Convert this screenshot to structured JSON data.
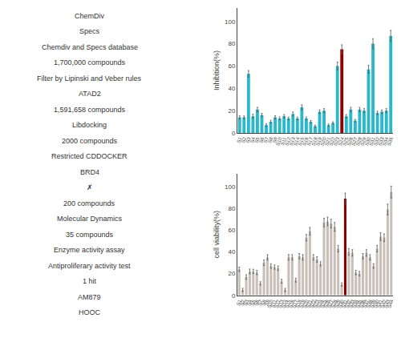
{
  "chart_data": [
    {
      "type": "bar",
      "y_label": "Inhibition(%)",
      "categories": [
        "S1",
        "S2",
        "S3",
        "S4",
        "S5",
        "S6",
        "S7",
        "S8",
        "S9",
        "S10",
        "S11",
        "S12",
        "S13",
        "S14",
        "S15",
        "S16",
        "S17",
        "S18",
        "S19",
        "S20",
        "S21",
        "S22",
        "S23",
        "S24",
        "S25",
        "S26",
        "S27",
        "S28",
        "S29",
        "S30",
        "S31",
        "S32",
        "S33",
        "S34",
        "S35"
      ],
      "values": [
        14,
        14,
        53,
        15,
        21,
        16,
        7,
        10,
        14,
        13,
        15,
        13,
        17,
        13,
        23,
        13,
        10,
        6,
        19,
        20,
        7,
        9,
        60,
        75,
        15,
        21,
        11,
        21,
        20,
        57,
        80,
        18,
        19,
        20,
        87
      ],
      "errors": [
        1.5,
        1.2,
        3.0,
        1.8,
        2.0,
        1.5,
        1.2,
        1.3,
        1.4,
        1.3,
        1.5,
        1.2,
        1.8,
        1.2,
        2.2,
        1.3,
        1.2,
        1.0,
        1.7,
        1.8,
        1.0,
        1.0,
        3.5,
        4.0,
        1.5,
        2.0,
        1.2,
        1.9,
        1.8,
        3.5,
        4.5,
        1.5,
        1.6,
        1.8,
        5.0
      ],
      "colors": [
        "#29b8cc",
        "#29b8cc",
        "#29b8cc",
        "#29b8cc",
        "#29b8cc",
        "#29b8cc",
        "#29b8cc",
        "#29b8cc",
        "#29b8cc",
        "#29b8cc",
        "#29b8cc",
        "#29b8cc",
        "#29b8cc",
        "#29b8cc",
        "#29b8cc",
        "#29b8cc",
        "#29b8cc",
        "#29b8cc",
        "#29b8cc",
        "#29b8cc",
        "#29b8cc",
        "#29b8cc",
        "#29b8cc",
        "#8b0000",
        "#29b8cc",
        "#29b8cc",
        "#29b8cc",
        "#29b8cc",
        "#29b8cc",
        "#29b8cc",
        "#29b8cc",
        "#29b8cc",
        "#29b8cc",
        "#29b8cc",
        "#29b8cc"
      ],
      "ylim": [
        0,
        112
      ],
      "yticks": [
        0,
        20,
        40,
        60,
        80,
        100
      ],
      "grid": false,
      "annotations": [
        "ChemDiv",
        "Specs",
        "Chemdiv and Specs database",
        "1,700,000 compounds",
        "Filter by Lipinski and Veber rules",
        "ATAD2",
        "1,591,658 compounds",
        "Libdocking",
        "2000 compounds",
        "Restricted CDDOCKER",
        "BRD4",
        "✗",
        "200 compounds",
        "Molecular Dynamics",
        "35 compounds",
        "Enzyme activity assay",
        "Antiproliferary activity test",
        "1 hit",
        "AM879",
        "HOOC"
      ]
    },
    {
      "type": "bar",
      "y_label": "cell viability(%)",
      "categories": [
        "S1",
        "S2",
        "S3",
        "S4",
        "S5",
        "S6",
        "S7",
        "S8",
        "S9",
        "S10",
        "S11",
        "S12",
        "S13",
        "S14",
        "S15",
        "S16",
        "S17",
        "S18",
        "S19",
        "S20",
        "S21",
        "S22",
        "S23",
        "S24",
        "S25",
        "S26",
        "S27",
        "S28",
        "S29",
        "S30",
        "S31",
        "S32",
        "S33",
        "S34",
        "S35",
        "S36",
        "S37",
        "S38",
        "S39",
        "S40",
        "S41",
        "S42",
        "S43",
        "S44"
      ],
      "values": [
        24,
        5,
        17,
        22,
        22,
        21,
        11,
        30,
        35,
        27,
        26,
        25,
        13,
        5,
        35,
        35,
        14,
        36,
        35,
        53,
        59,
        35,
        33,
        29,
        67,
        68,
        66,
        63,
        43,
        10,
        89,
        40,
        39,
        21,
        20,
        36,
        39,
        35,
        27,
        43,
        54,
        53,
        79,
        95
      ],
      "errors": [
        2.0,
        1.5,
        2.0,
        2.2,
        2.0,
        2.0,
        1.5,
        2.5,
        2.5,
        2.0,
        2.0,
        2.0,
        1.8,
        1.5,
        2.5,
        2.5,
        1.8,
        2.5,
        2.5,
        3.0,
        3.5,
        2.5,
        2.5,
        2.0,
        4.0,
        4.0,
        4.0,
        4.0,
        3.0,
        1.5,
        5.0,
        3.0,
        3.0,
        2.0,
        2.0,
        2.5,
        3.0,
        2.5,
        2.0,
        3.0,
        3.5,
        3.5,
        5.0,
        5.5
      ],
      "colors": [
        "#c8c0b8",
        "#c8c0b8",
        "#c8c0b8",
        "#c8c0b8",
        "#c8c0b8",
        "#c8c0b8",
        "#c8c0b8",
        "#c8c0b8",
        "#c8c0b8",
        "#c8c0b8",
        "#c8c0b8",
        "#c8c0b8",
        "#c8c0b8",
        "#c8c0b8",
        "#c8c0b8",
        "#c8c0b8",
        "#c8c0b8",
        "#c8c0b8",
        "#c8c0b8",
        "#c8c0b8",
        "#c8c0b8",
        "#c8c0b8",
        "#c8c0b8",
        "#c8c0b8",
        "#c8c0b8",
        "#c8c0b8",
        "#c8c0b8",
        "#c8c0b8",
        "#c8c0b8",
        "#c8c0b8",
        "#8b0000",
        "#c8c0b8",
        "#c8c0b8",
        "#c8c0b8",
        "#c8c0b8",
        "#c8c0b8",
        "#c8c0b8",
        "#c8c0b8",
        "#c8c0b8",
        "#c8c0b8",
        "#c8c0b8",
        "#c8c0b8",
        "#c8c0b8",
        "#c8c0b8"
      ],
      "ylim": [
        0,
        112
      ],
      "yticks": [
        0,
        20,
        40,
        60,
        80,
        100
      ],
      "grid": false
    }
  ]
}
